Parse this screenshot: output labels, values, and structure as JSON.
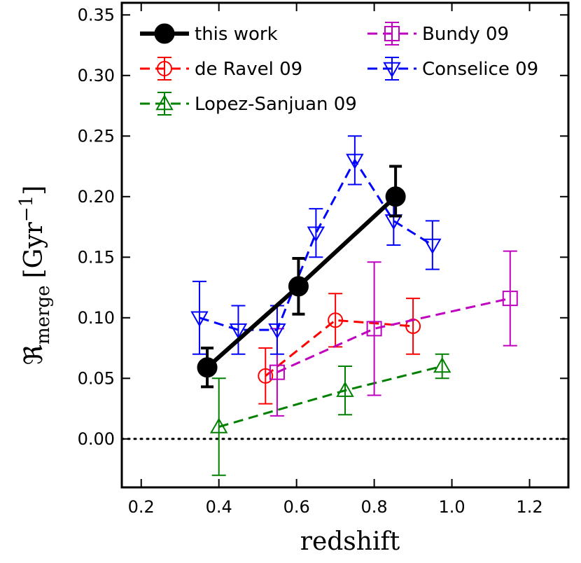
{
  "chart_data": {
    "type": "line",
    "title": "",
    "xlabel": "redshift",
    "ylabel": "ℜ_merge [Gyr^-1]",
    "ylabel_parts": {
      "symbol": "ℜ",
      "subscript": "merge",
      "bracket_open": "[",
      "unit": "Gyr",
      "exponent": "−1",
      "bracket_close": "]"
    },
    "xlim": [
      0.15,
      1.3
    ],
    "ylim": [
      -0.04,
      0.36
    ],
    "xticks": [
      0.2,
      0.4,
      0.6,
      0.8,
      1.0,
      1.2
    ],
    "xtick_labels": [
      "0.2",
      "0.4",
      "0.6",
      "0.8",
      "1.0",
      "1.2"
    ],
    "yticks": [
      0.0,
      0.05,
      0.1,
      0.15,
      0.2,
      0.25,
      0.3,
      0.35
    ],
    "ytick_labels": [
      "0.00",
      "0.05",
      "0.10",
      "0.15",
      "0.20",
      "0.25",
      "0.30",
      "0.35"
    ],
    "reference_line": {
      "y": 0.0,
      "style": "dotted"
    },
    "legend_position": "top-left",
    "series": [
      {
        "name": "this work",
        "color": "#000000",
        "marker": "filled-circle",
        "linestyle": "solid",
        "x": [
          0.37,
          0.605,
          0.855
        ],
        "y": [
          0.059,
          0.126,
          0.2
        ],
        "err_low": [
          0.016,
          0.023,
          0.016
        ],
        "err_high": [
          0.016,
          0.023,
          0.025
        ]
      },
      {
        "name": "de Ravel 09",
        "color": "#ff0000",
        "marker": "open-circle",
        "linestyle": "dashed",
        "x": [
          0.52,
          0.7,
          0.9
        ],
        "y": [
          0.052,
          0.098,
          0.093
        ],
        "err_low": [
          0.023,
          0.022,
          0.023
        ],
        "err_high": [
          0.023,
          0.022,
          0.023
        ]
      },
      {
        "name": "Lopez-Sanjuan 09",
        "color": "#008000",
        "marker": "open-triangle-up",
        "linestyle": "dashed",
        "x": [
          0.4,
          0.725,
          0.975
        ],
        "y": [
          0.01,
          0.04,
          0.06
        ],
        "err_low": [
          0.04,
          0.02,
          0.01
        ],
        "err_high": [
          0.04,
          0.02,
          0.01
        ]
      },
      {
        "name": "Bundy 09",
        "color": "#bf00bf",
        "marker": "open-square",
        "linestyle": "dashed",
        "x": [
          0.55,
          0.8,
          1.15
        ],
        "y": [
          0.055,
          0.091,
          0.116
        ],
        "err_low": [
          0.036,
          0.055,
          0.039
        ],
        "err_high": [
          0.036,
          0.055,
          0.039
        ]
      },
      {
        "name": "Conselice 09",
        "color": "#0000ff",
        "marker": "open-triangle-down",
        "linestyle": "dashed",
        "x": [
          0.35,
          0.45,
          0.55,
          0.65,
          0.75,
          0.85,
          0.95
        ],
        "y": [
          0.1,
          0.09,
          0.09,
          0.17,
          0.23,
          0.18,
          0.16
        ],
        "err_low": [
          0.03,
          0.02,
          0.02,
          0.02,
          0.02,
          0.02,
          0.02
        ],
        "err_high": [
          0.03,
          0.02,
          0.02,
          0.02,
          0.02,
          0.02,
          0.02
        ]
      }
    ],
    "legend_order": [
      0,
      3,
      1,
      4,
      2
    ]
  }
}
